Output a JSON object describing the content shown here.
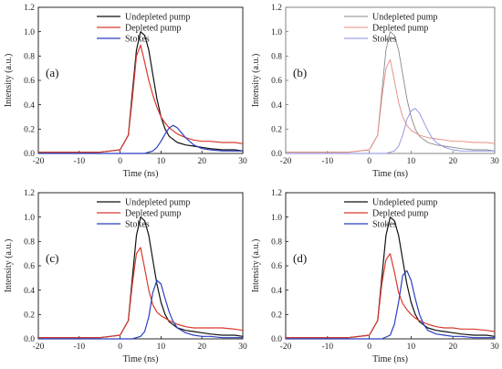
{
  "chart_data": [
    {
      "type": "line",
      "panel_label": "(a)",
      "xlabel": "Time (ns)",
      "ylabel": "Intensity (a.u.)",
      "xlim": [
        -20,
        30
      ],
      "ylim": [
        0,
        1.2
      ],
      "xticks": [
        "-20",
        "-10",
        "0",
        "10",
        "20",
        "30"
      ],
      "yticks": [
        "0.0",
        "0.2",
        "0.4",
        "0.6",
        "0.8",
        "1.0",
        "1.2"
      ],
      "legend_position": "top-right",
      "faded": false,
      "series": [
        {
          "name": "Undepleted pump",
          "color": "#111111",
          "x": [
            -20,
            -15,
            -10,
            -5,
            0,
            2,
            3,
            4,
            5,
            6,
            7,
            8,
            9,
            10,
            11,
            12,
            14,
            16,
            18,
            20,
            22,
            25,
            28,
            30
          ],
          "y": [
            0.01,
            0.01,
            0.01,
            0.01,
            0.03,
            0.15,
            0.5,
            0.85,
            1.0,
            0.97,
            0.85,
            0.65,
            0.45,
            0.3,
            0.2,
            0.14,
            0.09,
            0.07,
            0.06,
            0.05,
            0.04,
            0.03,
            0.03,
            0.02
          ]
        },
        {
          "name": "Depleted pump",
          "color": "#d83a2e",
          "x": [
            -20,
            -15,
            -10,
            -5,
            0,
            2,
            3,
            4,
            5,
            6,
            7,
            8,
            9,
            10,
            11,
            12,
            14,
            16,
            18,
            20,
            22,
            25,
            28,
            30
          ],
          "y": [
            0.01,
            0.01,
            0.01,
            0.01,
            0.03,
            0.15,
            0.45,
            0.8,
            0.89,
            0.75,
            0.6,
            0.48,
            0.38,
            0.3,
            0.25,
            0.21,
            0.16,
            0.13,
            0.11,
            0.1,
            0.1,
            0.09,
            0.09,
            0.08
          ]
        },
        {
          "name": "Stokes",
          "color": "#2a3fc0",
          "x": [
            -20,
            0,
            6,
            8,
            9,
            10,
            11,
            12,
            13,
            14,
            15,
            16,
            17,
            18,
            20,
            22,
            25,
            30
          ],
          "y": [
            0.0,
            0.0,
            0.0,
            0.02,
            0.05,
            0.1,
            0.16,
            0.21,
            0.23,
            0.21,
            0.17,
            0.13,
            0.1,
            0.07,
            0.04,
            0.03,
            0.02,
            0.02
          ]
        }
      ]
    },
    {
      "type": "line",
      "panel_label": "(b)",
      "xlabel": "Time (ns)",
      "ylabel": "Intensity (a.u.)",
      "xlim": [
        -20,
        30
      ],
      "ylim": [
        0,
        1.2
      ],
      "xticks": [
        "-20",
        "-10",
        "0",
        "10",
        "20",
        "30"
      ],
      "yticks": [
        "0.0",
        "0.2",
        "0.4",
        "0.6",
        "0.8",
        "1.0",
        "1.2"
      ],
      "legend_position": "top-right",
      "faded": true,
      "series": [
        {
          "name": "Undepleted pump",
          "color": "#888888",
          "x": [
            -20,
            -15,
            -10,
            -5,
            0,
            2,
            3,
            4,
            5,
            6,
            7,
            8,
            9,
            10,
            11,
            12,
            14,
            16,
            18,
            20,
            22,
            25,
            28,
            30
          ],
          "y": [
            0.01,
            0.01,
            0.01,
            0.01,
            0.03,
            0.15,
            0.5,
            0.85,
            1.0,
            0.97,
            0.85,
            0.65,
            0.45,
            0.3,
            0.2,
            0.14,
            0.09,
            0.07,
            0.06,
            0.05,
            0.04,
            0.03,
            0.03,
            0.02
          ]
        },
        {
          "name": "Depleted pump",
          "color": "#e88880",
          "x": [
            -20,
            -15,
            -10,
            -5,
            0,
            2,
            3,
            4,
            5,
            6,
            7,
            8,
            9,
            10,
            11,
            12,
            14,
            16,
            18,
            20,
            22,
            25,
            28,
            30
          ],
          "y": [
            0.01,
            0.01,
            0.01,
            0.01,
            0.03,
            0.15,
            0.45,
            0.7,
            0.77,
            0.6,
            0.42,
            0.3,
            0.23,
            0.19,
            0.17,
            0.15,
            0.13,
            0.12,
            0.11,
            0.1,
            0.1,
            0.09,
            0.09,
            0.08
          ]
        },
        {
          "name": "Stokes",
          "color": "#8a8ee0",
          "x": [
            -20,
            0,
            4,
            6,
            7,
            8,
            9,
            10,
            11,
            12,
            13,
            14,
            15,
            16,
            18,
            20,
            22,
            25,
            30
          ],
          "y": [
            0.0,
            0.0,
            0.0,
            0.02,
            0.06,
            0.15,
            0.28,
            0.35,
            0.37,
            0.33,
            0.26,
            0.19,
            0.13,
            0.09,
            0.05,
            0.03,
            0.02,
            0.02,
            0.02
          ]
        }
      ]
    },
    {
      "type": "line",
      "panel_label": "(c)",
      "xlabel": "Time (ns)",
      "ylabel": "Intensity (a.u.)",
      "xlim": [
        -20,
        30
      ],
      "ylim": [
        0,
        1.2
      ],
      "xticks": [
        "-20",
        "-10",
        "0",
        "10",
        "20",
        "30"
      ],
      "yticks": [
        "0.0",
        "0.2",
        "0.4",
        "0.6",
        "0.8",
        "1.0",
        "1.2"
      ],
      "legend_position": "top-right",
      "faded": false,
      "series": [
        {
          "name": "Undepleted pump",
          "color": "#111111",
          "x": [
            -20,
            -15,
            -10,
            -5,
            0,
            2,
            3,
            4,
            5,
            6,
            7,
            8,
            9,
            10,
            11,
            12,
            14,
            16,
            18,
            20,
            22,
            25,
            28,
            30
          ],
          "y": [
            0.01,
            0.01,
            0.01,
            0.01,
            0.03,
            0.15,
            0.5,
            0.85,
            1.0,
            0.97,
            0.85,
            0.65,
            0.45,
            0.3,
            0.2,
            0.14,
            0.09,
            0.07,
            0.06,
            0.05,
            0.04,
            0.03,
            0.03,
            0.02
          ]
        },
        {
          "name": "Depleted pump",
          "color": "#d83a2e",
          "x": [
            -20,
            -15,
            -10,
            -5,
            0,
            2,
            3,
            4,
            5,
            6,
            7,
            8,
            9,
            10,
            11,
            12,
            14,
            16,
            18,
            20,
            22,
            25,
            28,
            30
          ],
          "y": [
            0.01,
            0.01,
            0.01,
            0.01,
            0.03,
            0.15,
            0.45,
            0.7,
            0.75,
            0.58,
            0.4,
            0.28,
            0.22,
            0.19,
            0.17,
            0.15,
            0.12,
            0.1,
            0.09,
            0.09,
            0.09,
            0.09,
            0.08,
            0.07
          ]
        },
        {
          "name": "Stokes",
          "color": "#2a3fc0",
          "x": [
            -20,
            0,
            3,
            5,
            6,
            7,
            8,
            9,
            10,
            11,
            12,
            13,
            14,
            16,
            18,
            20,
            22,
            25,
            30
          ],
          "y": [
            0.0,
            0.0,
            0.0,
            0.02,
            0.06,
            0.18,
            0.38,
            0.48,
            0.45,
            0.33,
            0.22,
            0.14,
            0.09,
            0.05,
            0.03,
            0.02,
            0.02,
            0.01,
            0.01
          ]
        }
      ]
    },
    {
      "type": "line",
      "panel_label": "(d)",
      "xlabel": "Time (ns)",
      "ylabel": "Intensity (a.u.)",
      "xlim": [
        -20,
        30
      ],
      "ylim": [
        0,
        1.2
      ],
      "xticks": [
        "-20",
        "-10",
        "0",
        "10",
        "20",
        "30"
      ],
      "yticks": [
        "0.0",
        "0.2",
        "0.4",
        "0.6",
        "0.8",
        "1.0",
        "1.2"
      ],
      "legend_position": "top-right",
      "faded": false,
      "series": [
        {
          "name": "Undepleted pump",
          "color": "#111111",
          "x": [
            -20,
            -15,
            -10,
            -5,
            0,
            2,
            3,
            4,
            5,
            6,
            7,
            8,
            9,
            10,
            11,
            12,
            14,
            16,
            18,
            20,
            22,
            25,
            28,
            30
          ],
          "y": [
            0.01,
            0.01,
            0.01,
            0.01,
            0.03,
            0.15,
            0.5,
            0.85,
            1.0,
            0.97,
            0.85,
            0.65,
            0.45,
            0.3,
            0.2,
            0.14,
            0.09,
            0.07,
            0.06,
            0.05,
            0.04,
            0.03,
            0.03,
            0.02
          ]
        },
        {
          "name": "Depleted pump",
          "color": "#d83a2e",
          "x": [
            -20,
            -15,
            -10,
            -5,
            0,
            2,
            3,
            4,
            5,
            6,
            7,
            8,
            9,
            10,
            11,
            12,
            14,
            16,
            18,
            20,
            22,
            25,
            28,
            30
          ],
          "y": [
            0.01,
            0.01,
            0.01,
            0.01,
            0.03,
            0.15,
            0.45,
            0.65,
            0.7,
            0.55,
            0.38,
            0.29,
            0.24,
            0.2,
            0.17,
            0.15,
            0.12,
            0.1,
            0.09,
            0.09,
            0.08,
            0.08,
            0.07,
            0.06
          ]
        },
        {
          "name": "Stokes",
          "color": "#2a3fc0",
          "x": [
            -20,
            0,
            3,
            5,
            6,
            7,
            8,
            9,
            10,
            11,
            12,
            13,
            14,
            16,
            18,
            20,
            22,
            25,
            30
          ],
          "y": [
            0.0,
            0.0,
            0.0,
            0.03,
            0.12,
            0.3,
            0.52,
            0.56,
            0.48,
            0.33,
            0.2,
            0.12,
            0.07,
            0.04,
            0.03,
            0.02,
            0.02,
            0.01,
            0.01
          ]
        }
      ]
    }
  ]
}
